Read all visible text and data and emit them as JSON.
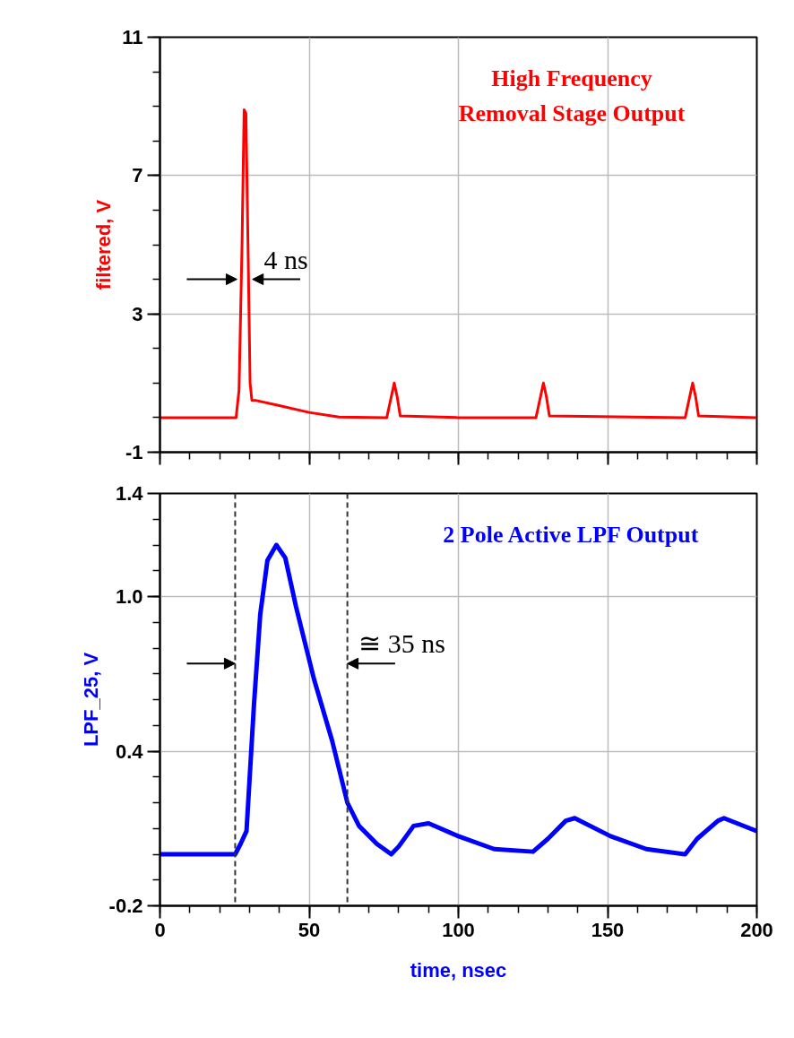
{
  "chart_data": [
    {
      "type": "line",
      "title": "High Frequency\nRemoval Stage Output",
      "ylabel": "filtered, V",
      "xlim": [
        0,
        200
      ],
      "xticks": [
        0,
        50,
        100,
        150,
        200
      ],
      "ylim": [
        -1,
        11
      ],
      "yticks": [
        -1,
        3,
        7,
        11
      ],
      "grid": true,
      "tick_labels": "y",
      "annotations": [
        {
          "text": "4 ns",
          "x": 28.4,
          "y": 4
        }
      ],
      "series": [
        {
          "color": "#ff0000",
          "x": [
            0,
            25.5,
            26.5,
            27.5,
            28.2,
            28.8,
            29.5,
            30.2,
            30.8,
            32,
            40,
            50,
            60,
            76,
            77.5,
            78.5,
            79.5,
            80.5,
            100,
            126,
            127.5,
            128.5,
            129.5,
            130.5,
            176,
            177.5,
            178.5,
            179.5,
            180.5,
            200
          ],
          "values": [
            0,
            0,
            0.8,
            5,
            8.9,
            8.8,
            5,
            1,
            0.5,
            0.5,
            0.35,
            0.15,
            0.02,
            0,
            0.6,
            1.0,
            0.6,
            0.05,
            0,
            0,
            0.6,
            1.0,
            0.6,
            0.05,
            0,
            0.6,
            1.0,
            0.6,
            0.05,
            0
          ]
        }
      ]
    },
    {
      "type": "line",
      "title": "2 Pole Active LPF Output",
      "xlabel": "time, nsec",
      "ylabel": "LPF_25, V",
      "xlim": [
        0,
        200
      ],
      "xticks": [
        0,
        50,
        100,
        150,
        200
      ],
      "ylim": [
        -0.2,
        1.4
      ],
      "yticks": [
        -0.2,
        {
          "value": 0.4,
          "label": "0.4"
        },
        {
          "value": 1.0,
          "label": "1.0"
        },
        1.4
      ],
      "grid": true,
      "annotations": [
        {
          "text": "≅ 35 ns",
          "x": 62.8,
          "y": 0.74
        }
      ],
      "ref_lines": [
        {
          "axis": "x",
          "value": 25.2,
          "color": "#333333",
          "line_style": "dashed"
        },
        {
          "axis": "x",
          "value": 62.8,
          "color": "#333333",
          "line_style": "dashed"
        }
      ],
      "series": [
        {
          "color": "#0000ff",
          "x": [
            0,
            25.2,
            27,
            29,
            31.5,
            33.6,
            36,
            39,
            42,
            45.6,
            51.6,
            57.7,
            62.8,
            66.7,
            72.7,
            77.5,
            80,
            85,
            90,
            100,
            112,
            125,
            130,
            136,
            139,
            151,
            163,
            176,
            180,
            187,
            189,
            200
          ],
          "values": [
            0,
            0,
            0.04,
            0.09,
            0.58,
            0.93,
            1.14,
            1.2,
            1.15,
            0.96,
            0.68,
            0.44,
            0.2,
            0.11,
            0.04,
            0,
            0.03,
            0.11,
            0.12,
            0.07,
            0.02,
            0.01,
            0.06,
            0.13,
            0.14,
            0.07,
            0.02,
            0,
            0.06,
            0.13,
            0.14,
            0.09
          ]
        }
      ]
    }
  ]
}
